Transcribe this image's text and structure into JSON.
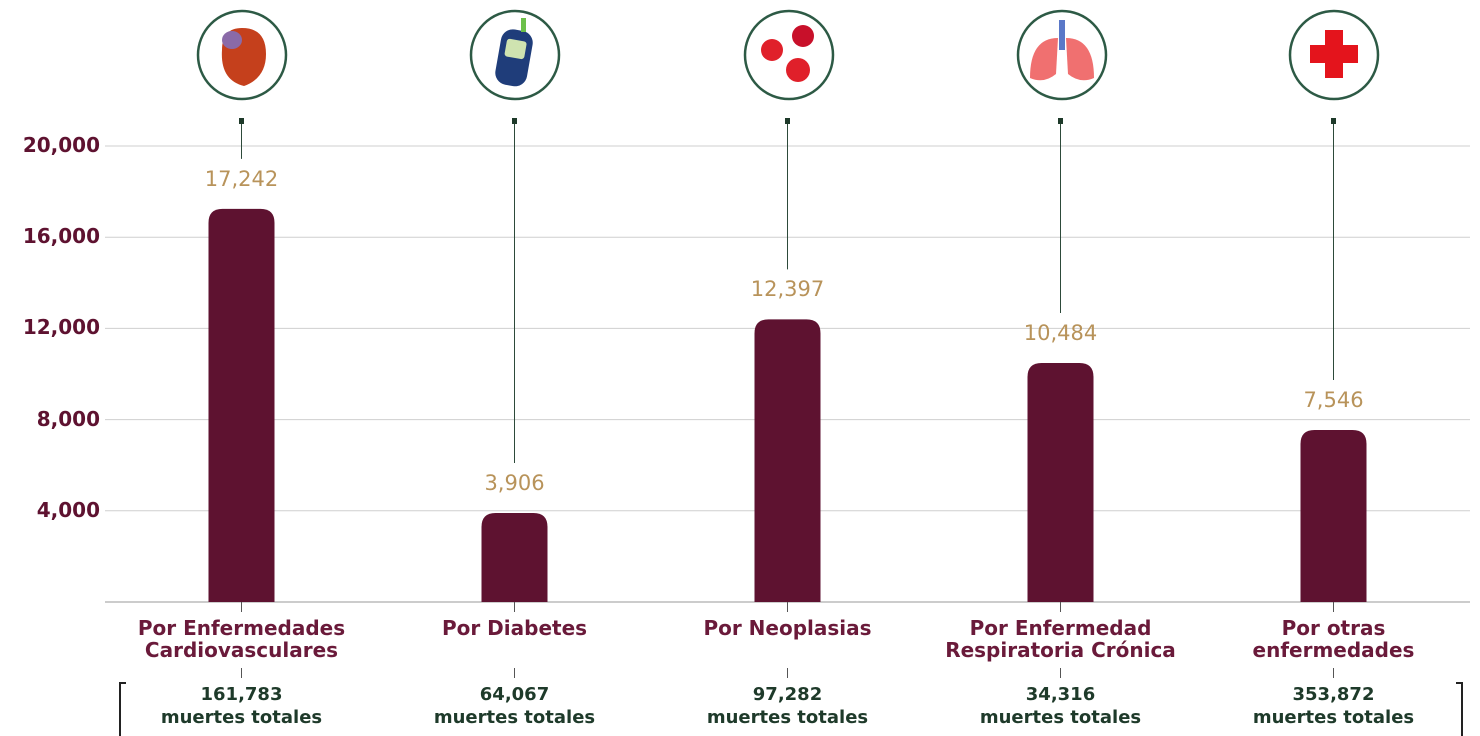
{
  "chart_data": {
    "type": "bar",
    "categories": [
      "Por Enfermedades\nCardiovasculares",
      "Por Diabetes",
      "Por Neoplasias",
      "Por Enfermedad\nRespiratoria Crónica",
      "Por otras\nenfermedades"
    ],
    "values": [
      17242,
      3906,
      12397,
      10484,
      7546
    ],
    "value_labels": [
      "17,242",
      "3,906",
      "12,397",
      "10,484",
      "7,546"
    ],
    "totals": [
      "161,783",
      "64,067",
      "97,282",
      "34,316",
      "353,872"
    ],
    "totals_caption": "muertes totales",
    "color": "#5e1230",
    "ylim": [
      0,
      20000
    ],
    "yticks": [
      {
        "value": 4000,
        "label": "4,000"
      },
      {
        "value": 8000,
        "label": "8,000"
      },
      {
        "value": 12000,
        "label": "12,000"
      },
      {
        "value": 16000,
        "label": "16,000"
      },
      {
        "value": 20000,
        "label": "20,000"
      }
    ],
    "grid": true
  }
}
